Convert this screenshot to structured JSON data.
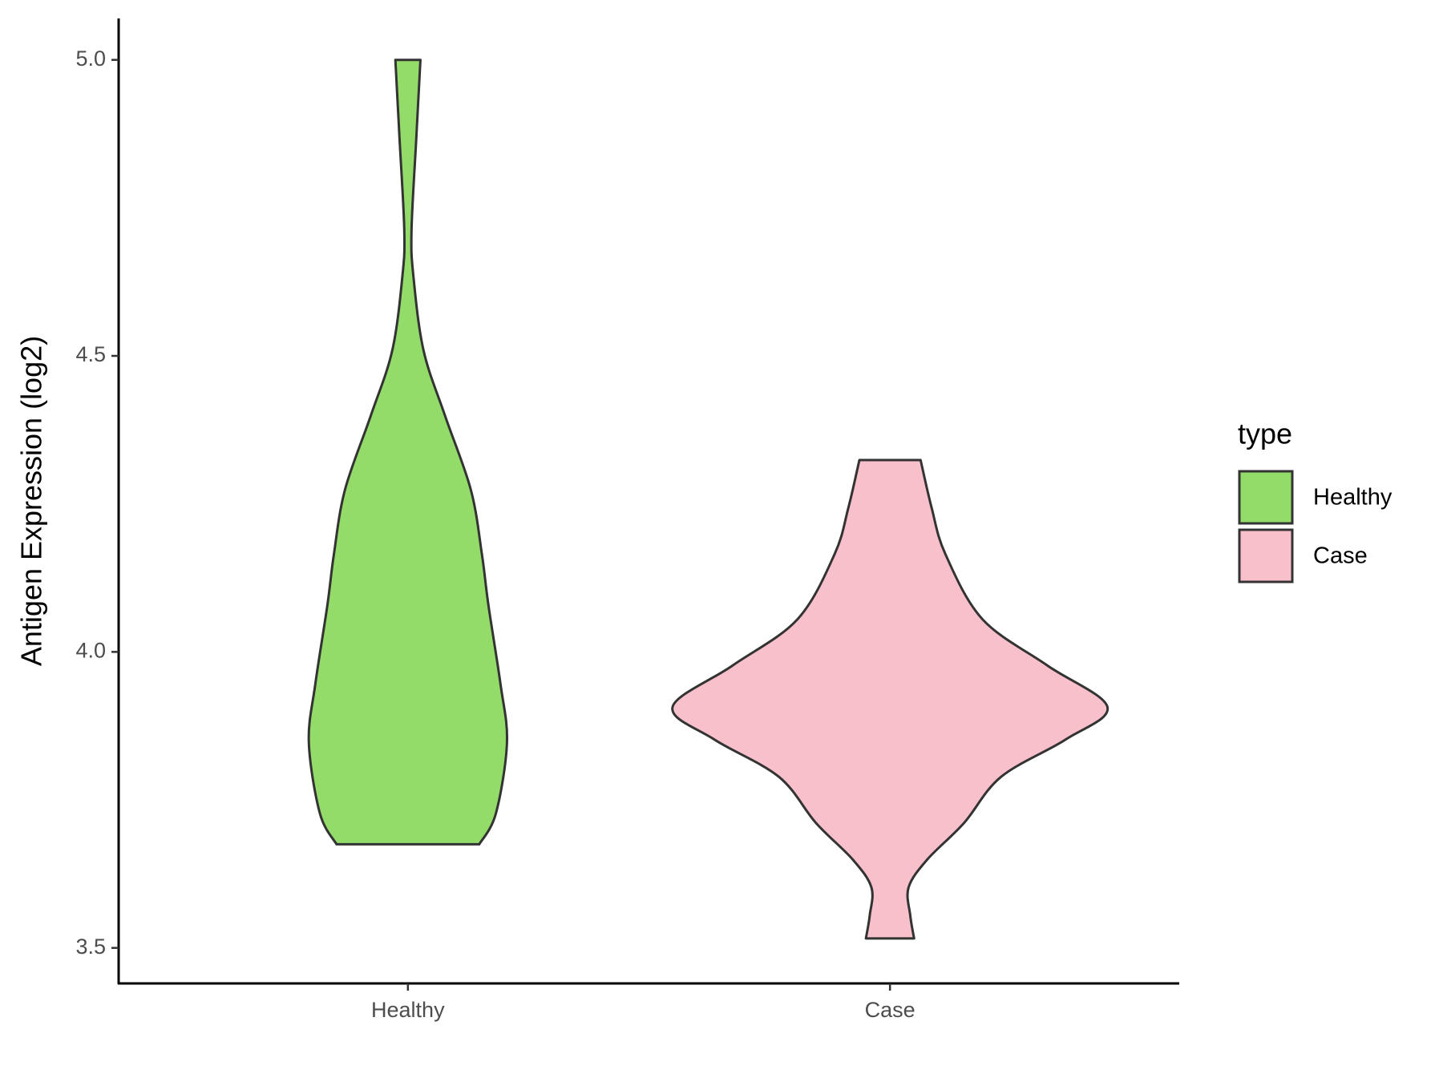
{
  "chart_data": {
    "type": "violin",
    "y_label": "Antigen Expression (log2)",
    "categories": [
      "Healthy",
      "Case"
    ],
    "legend_title": "type",
    "series": [
      {
        "name": "Healthy",
        "color": "#93dc6a",
        "y": [
          3.675,
          3.727,
          3.847,
          3.946,
          4.079,
          4.165,
          4.274,
          4.399,
          4.509,
          4.634,
          4.712,
          4.869,
          5.0
        ],
        "widths": [
          0.296,
          0.365,
          0.411,
          0.384,
          0.334,
          0.307,
          0.261,
          0.154,
          0.065,
          0.023,
          0.015,
          0.035,
          0.052
        ]
      },
      {
        "name": "Case",
        "color": "#f8c0cb",
        "y": [
          3.516,
          3.555,
          3.602,
          3.649,
          3.711,
          3.789,
          3.852,
          3.907,
          3.977,
          4.055,
          4.165,
          4.243,
          4.324
        ],
        "widths": [
          0.1,
          0.084,
          0.077,
          0.154,
          0.307,
          0.461,
          0.729,
          0.902,
          0.653,
          0.384,
          0.23,
          0.173,
          0.127
        ]
      }
    ],
    "ylim": [
      3.44,
      5.07
    ],
    "yticks": [
      {
        "value": 3.5,
        "label": "3.5"
      },
      {
        "value": 4,
        "label": "4.0"
      },
      {
        "value": 4.5,
        "label": "4.5"
      },
      {
        "value": 5,
        "label": "5.0"
      }
    ],
    "grid": false
  }
}
